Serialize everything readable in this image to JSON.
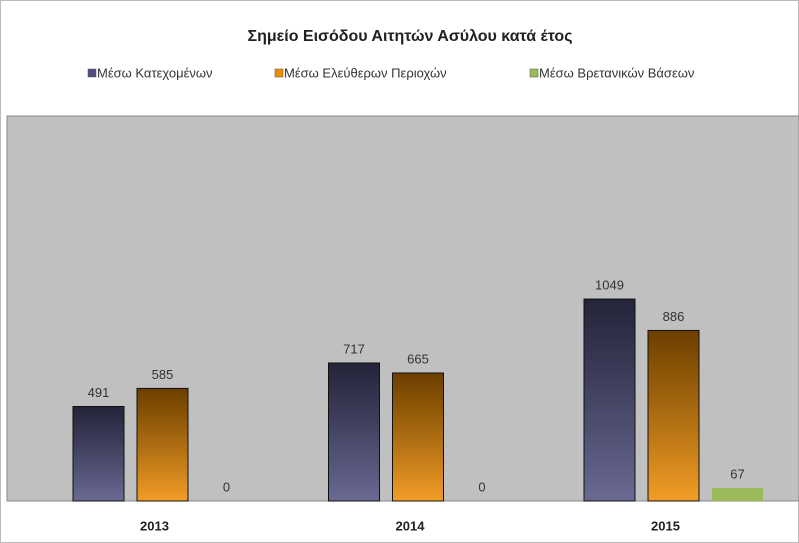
{
  "chart_data": {
    "type": "bar",
    "title": "Σημείο Εισόδου Αιτητών Ασύλου κατά έτος",
    "categories": [
      "2013",
      "2014",
      "2015"
    ],
    "series": [
      {
        "name": "Μέσω Κατεχομένων",
        "color": "#4f4f80",
        "values": [
          491,
          717,
          1049
        ]
      },
      {
        "name": "Μέσω Ελεύθερων Περιοχών",
        "color": "#f08c00",
        "values": [
          585,
          665,
          886
        ]
      },
      {
        "name": "Μέσω Βρετανικών Βάσεων",
        "color": "#9bbb59",
        "values": [
          0,
          0,
          67
        ]
      }
    ],
    "ylim": [
      0,
      2000
    ]
  }
}
